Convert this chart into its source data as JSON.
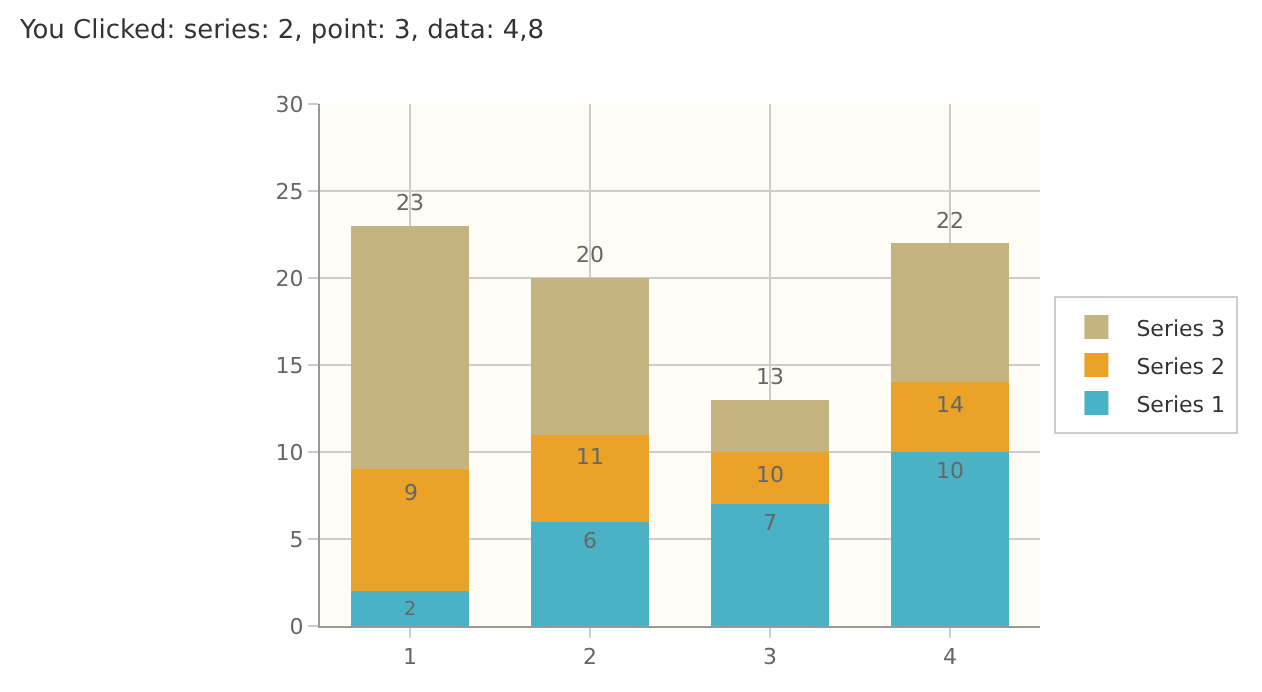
{
  "chart_data": {
    "type": "bar",
    "stacked": true,
    "categories": [
      "1",
      "2",
      "3",
      "4"
    ],
    "series": [
      {
        "name": "Series 1",
        "color": "#4bb2c5",
        "values": [
          2,
          6,
          7,
          10
        ],
        "value_labels": [
          "2",
          "6",
          "7",
          "10"
        ]
      },
      {
        "name": "Series 2",
        "color": "#eaa228",
        "values": [
          7,
          5,
          3,
          4
        ]
      },
      {
        "name": "Series 3",
        "color": "#c5b47f",
        "values": [
          14,
          9,
          3,
          8
        ]
      }
    ],
    "totals": [
      "23",
      "20",
      "13",
      "22"
    ],
    "ylim": [
      0,
      30
    ],
    "yticks": [
      0,
      5,
      10,
      15,
      20,
      25,
      30
    ],
    "grid": true,
    "legend": "right",
    "annotations": [
      "You Clicked: series: 2, point: 3, data: 4,8",
      {
        "text": "9",
        "x": "1",
        "y": 9
      },
      {
        "text": "11",
        "x": "2",
        "y": 11
      },
      {
        "text": "10",
        "x": "3",
        "y": 10
      },
      {
        "text": "14",
        "x": "4",
        "y": 14
      }
    ]
  }
}
